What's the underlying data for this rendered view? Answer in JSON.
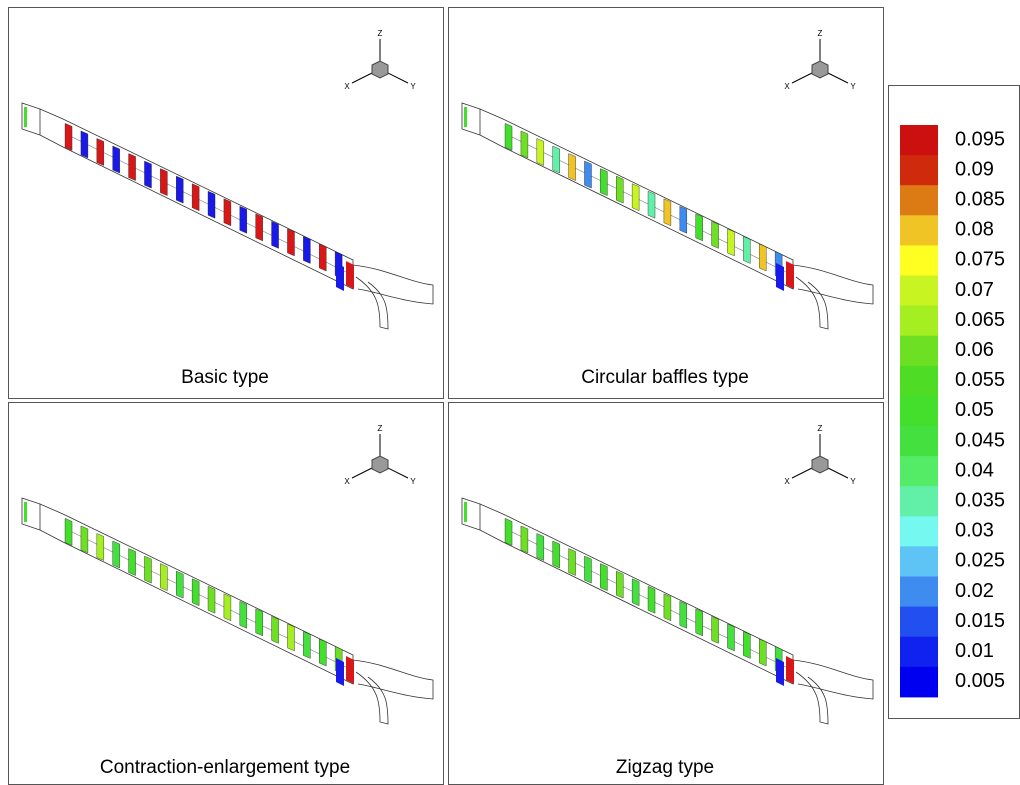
{
  "panels": [
    {
      "title": "Basic type",
      "triad": {
        "z": "Z",
        "x": "X",
        "y": "Y"
      }
    },
    {
      "title": "Circular baffles type",
      "triad": {
        "z": "Z",
        "x": "X",
        "y": "Y"
      }
    },
    {
      "title": "Contraction-enlargement type",
      "triad": {
        "z": "Z",
        "x": "X",
        "y": "Y"
      }
    },
    {
      "title": "Zigzag type",
      "triad": {
        "z": "Z",
        "x": "X",
        "y": "Y"
      }
    }
  ],
  "legend": {
    "levels": [
      {
        "value": 0.095,
        "color": "#cc1010"
      },
      {
        "value": 0.09,
        "color": "#cf2a0c"
      },
      {
        "value": 0.085,
        "color": "#dc7a14"
      },
      {
        "value": 0.08,
        "color": "#f0c424"
      },
      {
        "value": 0.075,
        "color": "#ffff22"
      },
      {
        "value": 0.07,
        "color": "#c8f422"
      },
      {
        "value": 0.065,
        "color": "#a4ee22"
      },
      {
        "value": 0.06,
        "color": "#6ee024"
      },
      {
        "value": 0.055,
        "color": "#4edc24"
      },
      {
        "value": 0.05,
        "color": "#44de2c"
      },
      {
        "value": 0.045,
        "color": "#44e040"
      },
      {
        "value": 0.04,
        "color": "#54ec66"
      },
      {
        "value": 0.035,
        "color": "#62f0a8"
      },
      {
        "value": 0.03,
        "color": "#74f8f0"
      },
      {
        "value": 0.025,
        "color": "#5ec4f6"
      },
      {
        "value": 0.02,
        "color": "#3e8cf0"
      },
      {
        "value": 0.015,
        "color": "#2250f0"
      },
      {
        "value": 0.01,
        "color": "#1022f0"
      },
      {
        "value": 0.005,
        "color": "#0000f0"
      }
    ]
  }
}
